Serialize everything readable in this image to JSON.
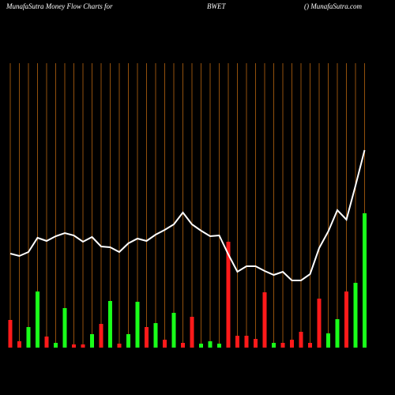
{
  "chart_data": {
    "type": "bar-line",
    "title": "MunafaSutra  Money Flow  Charts for",
    "symbol": "BWET",
    "source": "() MunafaSutra.com",
    "ylim": [
      0,
      360
    ],
    "grid": true,
    "grid_color": "#b8650f",
    "bars": {
      "values": [
        35,
        8,
        26,
        71,
        14,
        6,
        50,
        4,
        4,
        17,
        30,
        59,
        5,
        17,
        58,
        26,
        31,
        10,
        44,
        6,
        39,
        5,
        8,
        5,
        134,
        15,
        15,
        11,
        70,
        6,
        6,
        10,
        20,
        6,
        62,
        18,
        36,
        71,
        82,
        170
      ],
      "colors": [
        "#ff1a1a",
        "#ff1a1a",
        "#1aff1a",
        "#1aff1a",
        "#ff1a1a",
        "#1aff1a",
        "#1aff1a",
        "#ff1a1a",
        "#ff1a1a",
        "#1aff1a",
        "#ff1a1a",
        "#1aff1a",
        "#ff1a1a",
        "#1aff1a",
        "#1aff1a",
        "#ff1a1a",
        "#1aff1a",
        "#ff1a1a",
        "#1aff1a",
        "#ff1a1a",
        "#ff1a1a",
        "#1aff1a",
        "#1aff1a",
        "#1aff1a",
        "#ff1a1a",
        "#ff1a1a",
        "#ff1a1a",
        "#ff1a1a",
        "#ff1a1a",
        "#1aff1a",
        "#ff1a1a",
        "#ff1a1a",
        "#ff1a1a",
        "#ff1a1a",
        "#ff1a1a",
        "#1aff1a",
        "#1aff1a",
        "#ff1a1a",
        "#1aff1a",
        "#1aff1a"
      ]
    },
    "line": {
      "color": "#ffffff",
      "values": [
        119,
        116,
        121,
        139,
        135,
        141,
        145,
        142,
        134,
        140,
        128,
        127,
        121,
        132,
        138,
        135,
        143,
        149,
        156,
        171,
        156,
        148,
        141,
        142,
        118,
        96,
        103,
        103,
        97,
        92,
        96,
        85,
        85,
        93,
        126,
        147,
        174,
        162,
        205,
        250
      ]
    }
  }
}
